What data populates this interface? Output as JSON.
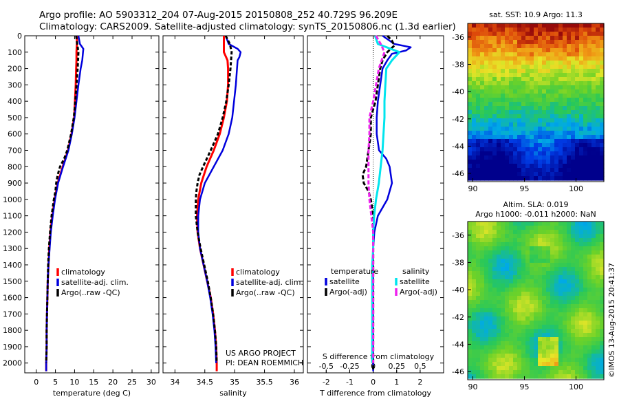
{
  "header": {
    "line1": "Argo profile: AO 5903312_204 07-Aug-2015 20150808_252 40.729S 96.209E",
    "line2": "Climatology: CARS2009. Satellite-adjusted climatology: synTS_20150806.nc (1.3d earlier)"
  },
  "credit": {
    "project": "US ARGO PROJECT",
    "pi": "PI: DEAN ROEMMICH"
  },
  "stamp": "©IMOS 13-Aug-2015 20:41:37",
  "colors": {
    "climatology": "#ff0000",
    "satellite": "#0000dd",
    "argo": "#000000",
    "sal_satellite": "#00e5ee",
    "sal_argo": "#ee22ee"
  },
  "depth_ticks": [
    0,
    100,
    200,
    300,
    400,
    500,
    600,
    700,
    800,
    900,
    1000,
    1100,
    1200,
    1300,
    1400,
    1500,
    1600,
    1700,
    1800,
    1900,
    2000
  ],
  "chart_data": [
    {
      "type": "line",
      "id": "temperature",
      "xlabel": "temperature (deg C)",
      "xlim": [
        -3,
        32
      ],
      "ylim": [
        2060,
        0
      ],
      "xticks": [
        0,
        5,
        10,
        15,
        20,
        25,
        30
      ],
      "legend": [
        "climatology",
        "satellite-adj. clim.",
        "Argo(..raw -QC)"
      ],
      "series": [
        {
          "name": "climatology",
          "depth": [
            0,
            50,
            100,
            150,
            200,
            300,
            400,
            500,
            600,
            700,
            800,
            900,
            1000,
            1100,
            1200,
            1300,
            1400,
            1500,
            1600,
            1700,
            1800,
            1900,
            2000,
            2050
          ],
          "values": [
            10.6,
            10.6,
            10.5,
            10.5,
            10.4,
            10.3,
            10.1,
            9.9,
            9.2,
            8.3,
            6.9,
            5.6,
            4.8,
            4.2,
            3.7,
            3.4,
            3.2,
            3.0,
            2.9,
            2.8,
            2.7,
            2.7,
            2.6,
            2.6
          ]
        },
        {
          "name": "satellite-adj. clim.",
          "depth": [
            0,
            50,
            80,
            100,
            150,
            200,
            300,
            400,
            500,
            600,
            700,
            800,
            900,
            1000,
            1100,
            1200,
            1300,
            1400,
            1500,
            1600,
            1700,
            1800,
            1900,
            2000,
            2050
          ],
          "values": [
            11.0,
            11.4,
            12.3,
            12.2,
            12.0,
            11.6,
            11.0,
            10.5,
            10.0,
            9.3,
            8.4,
            7.0,
            5.7,
            4.9,
            4.3,
            3.8,
            3.5,
            3.2,
            3.0,
            2.9,
            2.8,
            2.7,
            2.7,
            2.6,
            2.6
          ]
        },
        {
          "name": "Argo(..raw -QC)",
          "depth": [
            0,
            50,
            100,
            200,
            300,
            400,
            500,
            600,
            700,
            750,
            800,
            850,
            900,
            950,
            1000,
            1050,
            1100,
            1200,
            1300,
            1400,
            1500,
            1600,
            1700,
            1800,
            1900,
            2000
          ],
          "values": [
            10.4,
            10.7,
            11.0,
            10.8,
            10.5,
            10.2,
            9.8,
            9.1,
            8.1,
            7.3,
            6.2,
            5.6,
            5.2,
            5.0,
            4.6,
            4.3,
            4.0,
            3.6,
            3.3,
            3.1,
            3.0,
            2.9,
            2.8,
            2.7,
            2.7,
            2.6
          ]
        }
      ]
    },
    {
      "type": "line",
      "id": "salinity",
      "xlabel": "salinity",
      "xlim": [
        33.8,
        36.15
      ],
      "ylim": [
        2060,
        0
      ],
      "xticks": [
        "34",
        "34.5",
        "35",
        "35.5",
        "36"
      ],
      "legend": [
        "climatology",
        "satellite-adj. clim.",
        "Argo(..raw -QC)"
      ],
      "series": [
        {
          "name": "climatology",
          "depth": [
            0,
            50,
            100,
            150,
            200,
            300,
            400,
            500,
            600,
            700,
            800,
            900,
            1000,
            1100,
            1200,
            1300,
            1400,
            1500,
            1600,
            1700,
            1800,
            1900,
            2000,
            2050
          ],
          "values": [
            34.82,
            34.82,
            34.82,
            34.88,
            34.89,
            34.89,
            34.87,
            34.82,
            34.75,
            34.65,
            34.53,
            34.44,
            34.39,
            34.37,
            34.38,
            34.42,
            34.48,
            34.54,
            34.6,
            34.64,
            34.67,
            34.69,
            34.7,
            34.7
          ]
        },
        {
          "name": "satellite-adj. clim.",
          "depth": [
            0,
            50,
            80,
            100,
            130,
            150,
            200,
            300,
            400,
            500,
            600,
            700,
            800,
            900,
            1000,
            1100,
            1200,
            1300,
            1400,
            1500,
            1600,
            1700,
            1800,
            1900,
            2000
          ],
          "values": [
            34.85,
            34.9,
            35.05,
            35.1,
            35.08,
            35.05,
            35.04,
            35.02,
            34.99,
            34.96,
            34.9,
            34.8,
            34.65,
            34.5,
            34.42,
            34.39,
            34.39,
            34.42,
            34.48,
            34.54,
            34.59,
            34.63,
            34.66,
            34.68,
            34.69
          ]
        },
        {
          "name": "Argo(..raw -QC)",
          "depth": [
            0,
            50,
            100,
            200,
            300,
            400,
            500,
            600,
            700,
            800,
            850,
            900,
            950,
            1000,
            1100,
            1200,
            1300,
            1400,
            1500,
            1600,
            1700,
            1800,
            1900,
            2000
          ],
          "values": [
            34.85,
            34.92,
            34.95,
            34.93,
            34.9,
            34.86,
            34.8,
            34.72,
            34.6,
            34.47,
            34.41,
            34.38,
            34.36,
            34.35,
            34.35,
            34.38,
            34.43,
            34.49,
            34.55,
            34.6,
            34.64,
            34.67,
            34.69,
            34.7
          ]
        }
      ]
    },
    {
      "type": "line",
      "id": "difference",
      "xlabel": "T difference from climatology",
      "xlabel2": "S difference from climatology",
      "xlim": [
        -2.8,
        3.0
      ],
      "ylim": [
        2060,
        0
      ],
      "xticks": [
        -2,
        -1,
        0,
        1,
        2
      ],
      "sticks": [
        -0.5,
        -0.25,
        0,
        0.25,
        0.5
      ],
      "stick_labels": [
        "-0.5",
        "-0.25",
        "0",
        "0.25",
        "0.5"
      ],
      "legend_titles": [
        "temperature",
        "salinity"
      ],
      "legend": [
        "satellite",
        "Argo(-adj)",
        "satellite",
        "Argo(-adj)"
      ],
      "series": [
        {
          "name": "satellite",
          "depth": [
            0,
            50,
            70,
            90,
            110,
            150,
            200,
            300,
            400,
            500,
            600,
            700,
            750,
            800,
            900,
            1000,
            1100,
            1200,
            1300,
            1400,
            1500,
            1600,
            1700,
            1800,
            1900,
            2000,
            2050
          ],
          "values": [
            0.4,
            0.9,
            1.6,
            1.4,
            0.8,
            0.6,
            0.4,
            0.3,
            0.2,
            0.15,
            0.15,
            0.25,
            0.55,
            0.7,
            0.8,
            0.6,
            0.2,
            0.05,
            0.0,
            0.0,
            0.0,
            0.0,
            0.0,
            0.0,
            0.0,
            0.0,
            0.0
          ]
        },
        {
          "name": "Argo(-adj)",
          "depth": [
            0,
            30,
            60,
            100,
            150,
            200,
            300,
            400,
            500,
            600,
            700,
            800,
            850,
            900,
            950,
            1000,
            1100,
            1200,
            1300,
            1400,
            1500,
            1600,
            1700,
            1800,
            1900,
            2000,
            2050
          ],
          "values": [
            0.6,
            0.8,
            0.9,
            0.6,
            0.4,
            0.3,
            0.2,
            0.1,
            -0.1,
            -0.1,
            -0.2,
            -0.3,
            -0.45,
            -0.4,
            -0.2,
            -0.1,
            0.0,
            0.0,
            0.0,
            0.0,
            0.0,
            0.0,
            0.0,
            0.0,
            0.0,
            0.0,
            0.0
          ]
        },
        {
          "name": "satellite",
          "axis": "salinity",
          "depth": [
            0,
            50,
            100,
            150,
            200,
            300,
            400,
            500,
            600,
            700,
            800,
            900,
            1000,
            1100,
            1200,
            1300,
            1400,
            1500,
            1600,
            1700,
            1800,
            1900,
            2000
          ],
          "values": [
            0.02,
            0.05,
            0.28,
            0.2,
            0.14,
            0.13,
            0.12,
            0.12,
            0.11,
            0.1,
            0.08,
            0.06,
            0.03,
            0.01,
            0.0,
            0.0,
            -0.01,
            -0.01,
            -0.01,
            -0.01,
            -0.01,
            -0.01,
            -0.01
          ]
        },
        {
          "name": "Argo(-adj)",
          "axis": "salinity",
          "depth": [
            0,
            50,
            100,
            200,
            300,
            400,
            500,
            600,
            700,
            800,
            900,
            1000,
            1100,
            1200,
            1300,
            1400,
            1500,
            1600,
            1700,
            1800,
            1900,
            2000
          ],
          "values": [
            0.03,
            0.08,
            0.12,
            0.06,
            0.03,
            0.0,
            -0.04,
            -0.04,
            -0.05,
            -0.05,
            -0.05,
            -0.04,
            -0.02,
            0.0,
            0.0,
            0.0,
            0.0,
            0.0,
            0.0,
            0.0,
            0.0,
            0.0
          ]
        }
      ]
    },
    {
      "type": "heatmap",
      "id": "sst_map",
      "title": "sat. SST: 10.9  Argo: 11.3",
      "xlim": [
        89.5,
        102.7
      ],
      "ylim": [
        -35,
        -46.6
      ],
      "xticks": [
        90,
        95,
        100
      ],
      "yticks": [
        -36,
        -38,
        -40,
        -42,
        -44,
        -46
      ],
      "marker": [
        96.2,
        -40.7
      ]
    },
    {
      "type": "heatmap",
      "id": "sla_map",
      "title": "Altim. SLA: 0.019",
      "subtitle": "Argo h1000: -0.011  h2000: NaN",
      "xlim": [
        89.5,
        102.7
      ],
      "ylim": [
        -35,
        -46.6
      ],
      "xticks": [
        90,
        95,
        100
      ],
      "yticks": [
        -36,
        -38,
        -40,
        -42,
        -44,
        -46
      ],
      "marker": [
        96.2,
        -40.7
      ]
    }
  ]
}
